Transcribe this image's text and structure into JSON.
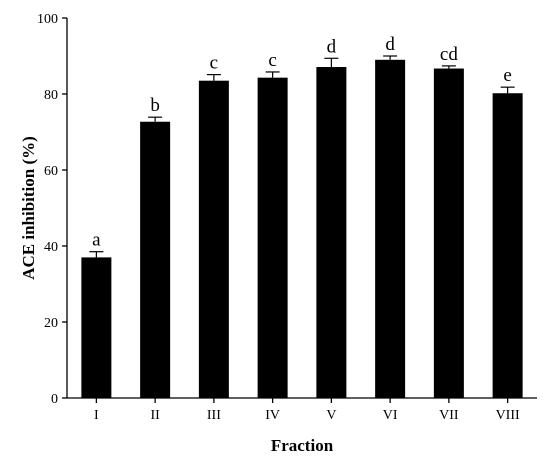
{
  "chart_data": {
    "type": "bar",
    "xlabel": "Fraction",
    "ylabel": "ACE inhibition (%)",
    "ylim": [
      0,
      100
    ],
    "yticks": [
      0,
      20,
      40,
      60,
      80,
      100
    ],
    "grid": false,
    "categories": [
      "I",
      "II",
      "III",
      "IV",
      "V",
      "VI",
      "VII",
      "VIII"
    ],
    "values": [
      37.0,
      72.7,
      83.5,
      84.3,
      87.1,
      89.0,
      86.7,
      80.2
    ],
    "errors": [
      1.5,
      1.2,
      1.6,
      1.5,
      2.3,
      1.0,
      0.7,
      1.6
    ],
    "significance_letters": [
      "a",
      "b",
      "c",
      "c",
      "d",
      "d",
      "cd",
      "e"
    ],
    "bar_color": "#000000"
  }
}
